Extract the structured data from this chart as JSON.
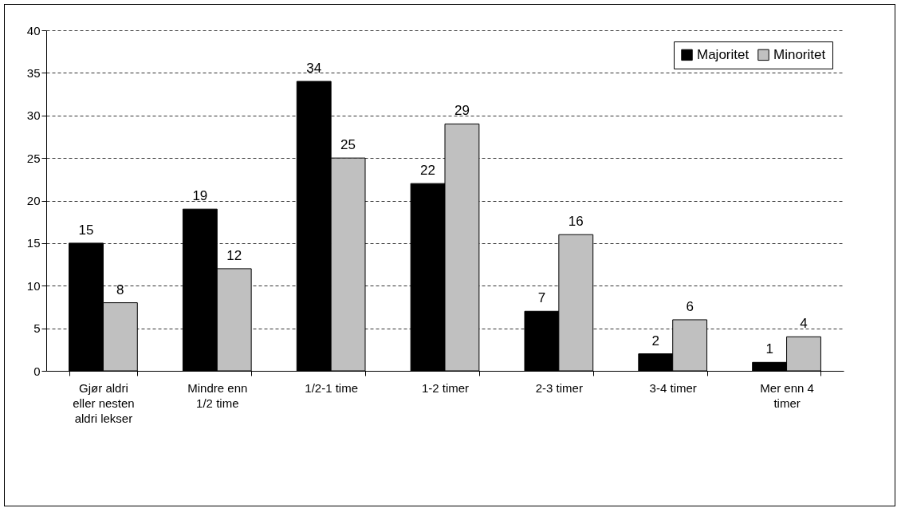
{
  "chart_data": {
    "type": "bar",
    "categories": [
      "Gjør aldri eller nesten aldri lekser",
      "Mindre enn 1/2 time",
      "1/2-1 time",
      "1-2 timer",
      "2-3 timer",
      "3-4 timer",
      "Mer enn 4 timer"
    ],
    "series": [
      {
        "name": "Majoritet",
        "color": "#000000",
        "values": [
          15,
          19,
          34,
          22,
          7,
          2,
          1
        ]
      },
      {
        "name": "Minoritet",
        "color": "#c0c0c0",
        "values": [
          8,
          12,
          25,
          29,
          16,
          6,
          4
        ]
      }
    ],
    "ylim": [
      0,
      40
    ],
    "yticks": [
      0,
      5,
      10,
      15,
      20,
      25,
      30,
      35,
      40
    ],
    "grid": "y",
    "legend": "top right",
    "data_labels": true
  }
}
